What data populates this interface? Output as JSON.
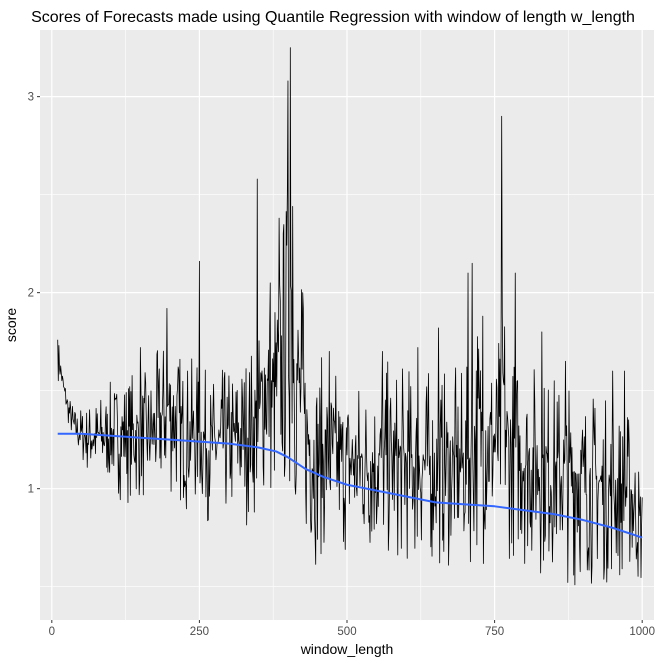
{
  "chart_data": {
    "type": "line",
    "title": "Scores of Forecasts made using Quantile Regression with window of length w_length",
    "xlabel": "window_length",
    "ylabel": "score",
    "xlim": [
      -20,
      1020
    ],
    "ylim": [
      0.33,
      3.34
    ],
    "x_ticks": [
      0,
      250,
      500,
      750,
      1000
    ],
    "y_ticks": [
      1,
      2,
      3
    ],
    "grid": true,
    "legend": "none",
    "background_color": "#ebebeb",
    "gridline_color": "#ffffff",
    "raw_line_color": "#000000",
    "smooth_line_color": "#3366ff",
    "series": [
      {
        "kind": "raw",
        "x_start": 10,
        "x_step": 1,
        "envelope_x": [
          10,
          12,
          20,
          30,
          40,
          60,
          80,
          100,
          120,
          140,
          160,
          180,
          200,
          220,
          250,
          270,
          300,
          330,
          350,
          360,
          370,
          380,
          390,
          400,
          405,
          410,
          420,
          430,
          440,
          450,
          470,
          500,
          530,
          560,
          600,
          650,
          700,
          710,
          720,
          740,
          760,
          765,
          770,
          780,
          800,
          830,
          860,
          900,
          930,
          960,
          980,
          1000
        ],
        "envelope_low": [
          1.55,
          1.55,
          1.42,
          1.28,
          1.18,
          1.05,
          1.0,
          0.98,
          0.92,
          0.9,
          0.88,
          0.88,
          0.9,
          0.86,
          0.84,
          0.8,
          0.76,
          0.8,
          0.82,
          0.85,
          0.84,
          0.82,
          0.8,
          0.82,
          0.83,
          0.8,
          0.7,
          0.62,
          0.58,
          0.6,
          0.62,
          0.6,
          0.58,
          0.56,
          0.55,
          0.55,
          0.56,
          0.56,
          0.6,
          0.6,
          0.6,
          0.6,
          0.6,
          0.6,
          0.55,
          0.52,
          0.5,
          0.48,
          0.47,
          0.48,
          0.5,
          0.42
        ],
        "envelope_high": [
          1.76,
          1.76,
          1.6,
          1.48,
          1.42,
          1.45,
          1.5,
          1.55,
          1.62,
          1.62,
          1.6,
          1.72,
          1.88,
          1.7,
          1.65,
          1.58,
          1.65,
          1.75,
          1.8,
          2.2,
          2.0,
          2.1,
          2.4,
          2.7,
          3.1,
          2.4,
          2.2,
          1.9,
          1.75,
          1.7,
          1.65,
          1.6,
          1.62,
          1.66,
          1.65,
          1.62,
          1.62,
          1.65,
          2.0,
          1.82,
          1.8,
          2.3,
          1.8,
          1.72,
          1.72,
          1.64,
          1.6,
          1.55,
          1.5,
          1.45,
          1.42,
          1.1
        ],
        "spikes": [
          {
            "x": 10,
            "y": 1.76
          },
          {
            "x": 150,
            "y": 1.72
          },
          {
            "x": 195,
            "y": 1.92
          },
          {
            "x": 250,
            "y": 2.16
          },
          {
            "x": 348,
            "y": 2.58
          },
          {
            "x": 370,
            "y": 2.05
          },
          {
            "x": 385,
            "y": 2.38
          },
          {
            "x": 400,
            "y": 3.08
          },
          {
            "x": 404,
            "y": 3.25
          },
          {
            "x": 408,
            "y": 2.44
          },
          {
            "x": 425,
            "y": 2.0
          },
          {
            "x": 470,
            "y": 1.7
          },
          {
            "x": 560,
            "y": 1.7
          },
          {
            "x": 620,
            "y": 1.72
          },
          {
            "x": 655,
            "y": 1.82
          },
          {
            "x": 705,
            "y": 2.1
          },
          {
            "x": 712,
            "y": 2.15
          },
          {
            "x": 730,
            "y": 1.88
          },
          {
            "x": 762,
            "y": 2.9
          },
          {
            "x": 785,
            "y": 2.1
          },
          {
            "x": 830,
            "y": 1.8
          },
          {
            "x": 870,
            "y": 1.65
          },
          {
            "x": 950,
            "y": 1.6
          },
          {
            "x": 970,
            "y": 1.6
          }
        ],
        "seed": 7
      },
      {
        "kind": "smooth",
        "x": [
          10,
          50,
          100,
          150,
          200,
          250,
          300,
          350,
          380,
          400,
          430,
          460,
          500,
          550,
          600,
          650,
          700,
          750,
          800,
          850,
          900,
          950,
          1000
        ],
        "y": [
          1.28,
          1.28,
          1.27,
          1.26,
          1.25,
          1.24,
          1.23,
          1.21,
          1.19,
          1.16,
          1.1,
          1.06,
          1.02,
          0.99,
          0.96,
          0.93,
          0.92,
          0.91,
          0.89,
          0.87,
          0.84,
          0.8,
          0.75
        ]
      }
    ]
  }
}
